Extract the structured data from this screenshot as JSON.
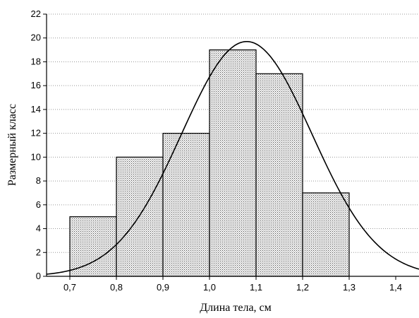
{
  "chart_data": {
    "type": "bar",
    "variant": "histogram",
    "xlabel": "Длина тела, см",
    "ylabel": "Размерный класс",
    "xlim": [
      0.65,
      1.45
    ],
    "ylim": [
      0,
      22
    ],
    "x_ticks": [
      "0,7",
      "0,8",
      "0,9",
      "1,0",
      "1,1",
      "1,2",
      "1,3",
      "1,4"
    ],
    "y_ticks": [
      "0",
      "2",
      "4",
      "6",
      "8",
      "10",
      "12",
      "14",
      "16",
      "18",
      "20",
      "22"
    ],
    "grid": true,
    "bins": [
      {
        "from": 0.7,
        "to": 0.8,
        "value": 5
      },
      {
        "from": 0.8,
        "to": 0.9,
        "value": 10
      },
      {
        "from": 0.9,
        "to": 1.0,
        "value": 12
      },
      {
        "from": 1.0,
        "to": 1.1,
        "value": 19
      },
      {
        "from": 1.1,
        "to": 1.2,
        "value": 17
      },
      {
        "from": 1.2,
        "to": 1.3,
        "value": 7
      }
    ],
    "curve": {
      "type": "normal",
      "mean": 1.08,
      "sd": 0.14,
      "peak": 19.7
    },
    "bar_fill": "dotted gray",
    "bar_stroke": "#000000",
    "curve_color": "#000000",
    "grid_color": "#999999"
  }
}
